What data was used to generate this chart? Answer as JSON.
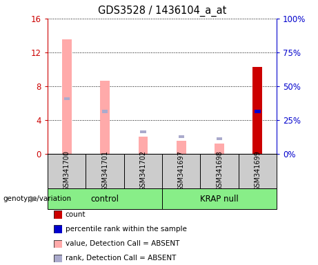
{
  "title": "GDS3528 / 1436104_a_at",
  "samples": [
    "GSM341700",
    "GSM341701",
    "GSM341702",
    "GSM341697",
    "GSM341698",
    "GSM341699"
  ],
  "pink_values": [
    13.5,
    8.6,
    2.0,
    1.5,
    1.2,
    0.0
  ],
  "pink_rank_vals": [
    6.5,
    5.0,
    2.6,
    2.0,
    1.8,
    0.0
  ],
  "red_values": [
    0.0,
    0.0,
    0.0,
    0.0,
    0.0,
    10.3
  ],
  "blue_rank_vals": [
    0.0,
    0.0,
    0.0,
    0.0,
    0.0,
    5.0
  ],
  "ylim_left": [
    0,
    16
  ],
  "ylim_right": [
    0,
    100
  ],
  "yticks_left": [
    0,
    4,
    8,
    12,
    16
  ],
  "yticks_right": [
    0,
    25,
    50,
    75,
    100
  ],
  "yticklabels_left": [
    "0",
    "4",
    "8",
    "12",
    "16"
  ],
  "yticklabels_right": [
    "0%",
    "25%",
    "50%",
    "75%",
    "100%"
  ],
  "left_axis_color": "#cc0000",
  "right_axis_color": "#0000cc",
  "pink_color": "#ffaaaa",
  "pink_rank_color": "#aaaacc",
  "red_color": "#cc0000",
  "blue_color": "#0000cc",
  "group_info": [
    {
      "label": "control",
      "start": 0,
      "end": 2
    },
    {
      "label": "KRAP null",
      "start": 3,
      "end": 5
    }
  ],
  "green_color": "#88ee88",
  "gray_color": "#cccccc",
  "legend_items": [
    {
      "label": "count",
      "color": "#cc0000"
    },
    {
      "label": "percentile rank within the sample",
      "color": "#0000cc"
    },
    {
      "label": "value, Detection Call = ABSENT",
      "color": "#ffaaaa"
    },
    {
      "label": "rank, Detection Call = ABSENT",
      "color": "#aaaacc"
    }
  ],
  "genotype_label": "genotype/variation"
}
